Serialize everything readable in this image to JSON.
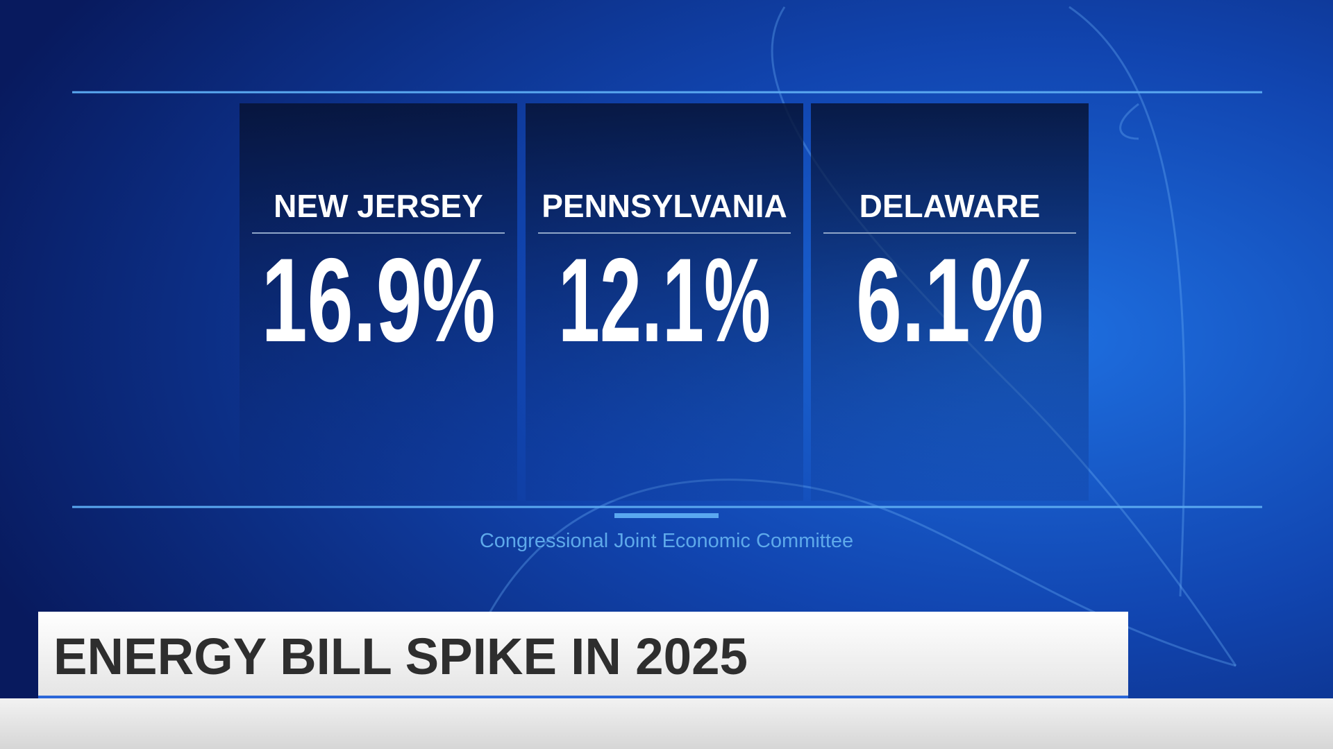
{
  "panels": [
    {
      "label": "NEW JERSEY",
      "value": "16.9%"
    },
    {
      "label": "PENNSYLVANIA",
      "value": "12.1%"
    },
    {
      "label": "DELAWARE",
      "value": "6.1%"
    }
  ],
  "source": "Congressional Joint Economic Committee",
  "banner": {
    "headline": "ENERGY BILL SPIKE IN 2025"
  }
}
